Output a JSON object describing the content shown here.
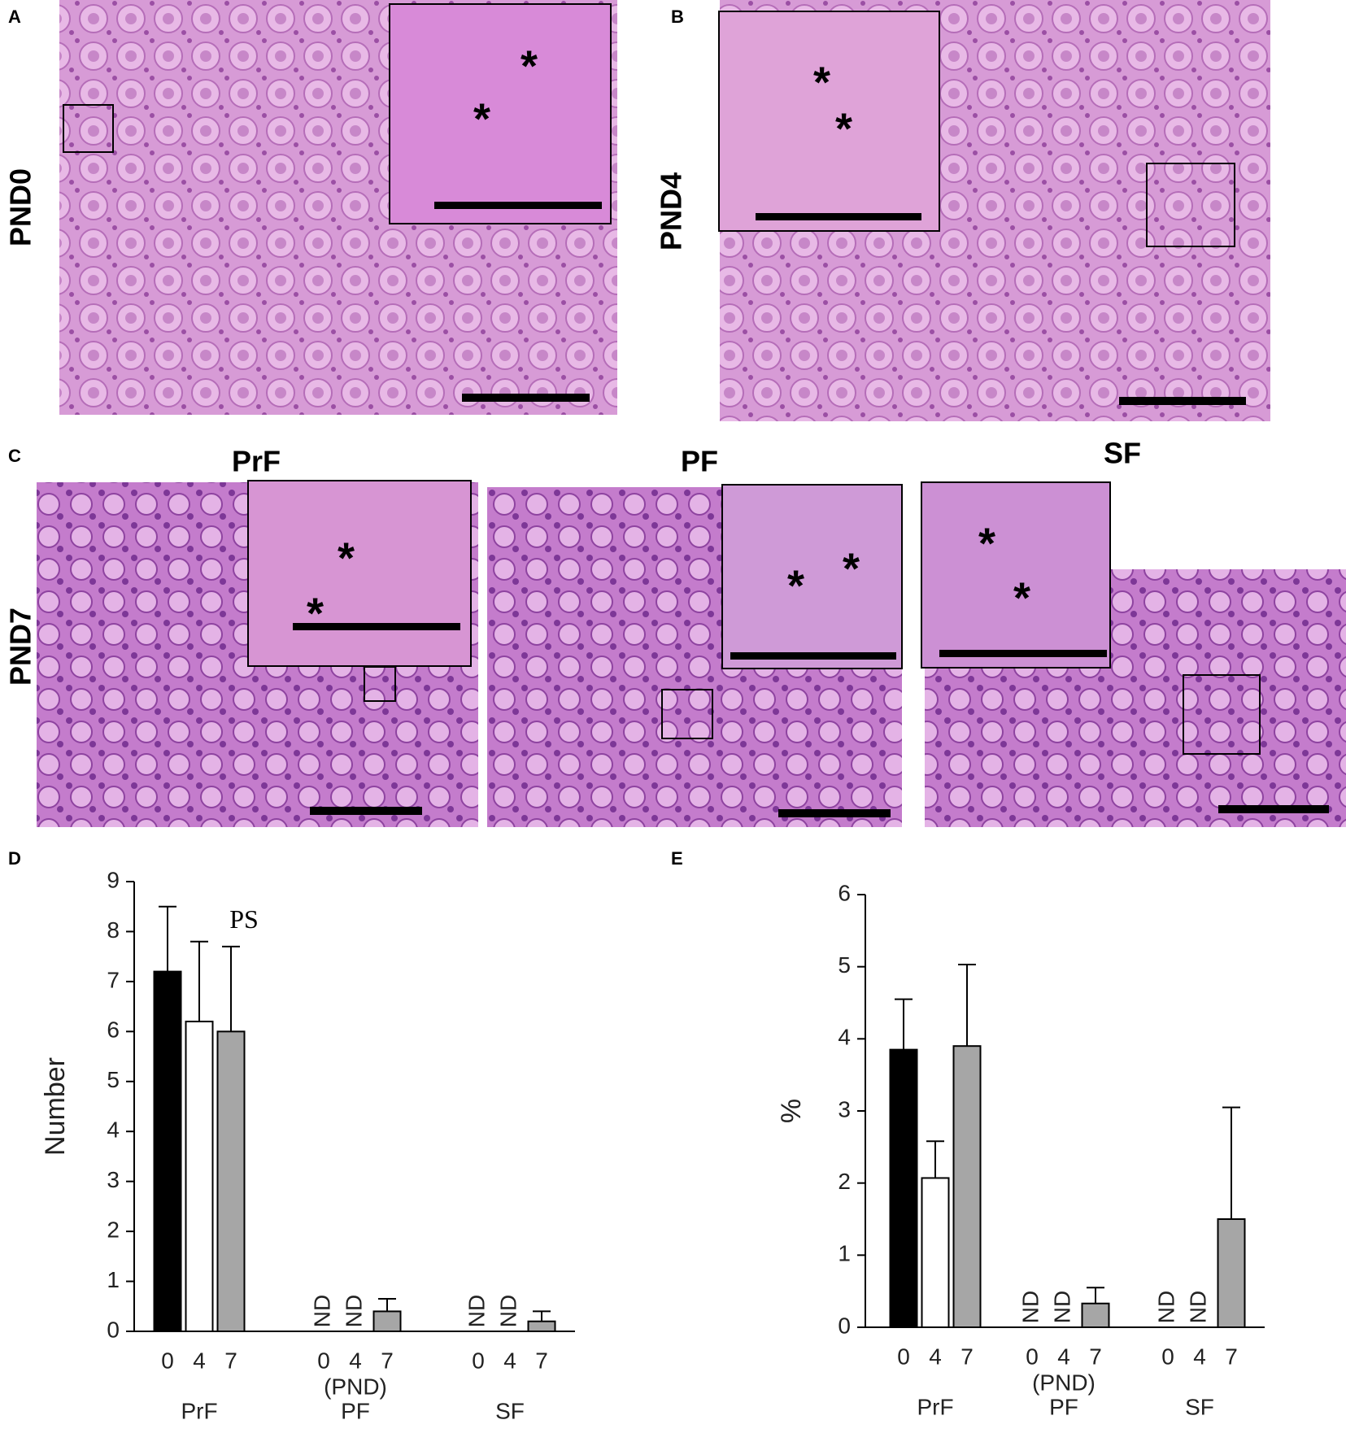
{
  "panels": {
    "a": {
      "letter": "A",
      "stage": "PND0",
      "inset_marks": [
        "*",
        "*"
      ]
    },
    "b": {
      "letter": "B",
      "stage": "PND4",
      "inset_marks": [
        "*",
        "*"
      ]
    },
    "c": {
      "letter": "C",
      "stage": "PND7",
      "titles": [
        "PrF",
        "PF",
        "SF"
      ],
      "inset_marks": [
        [
          "*",
          "*"
        ],
        [
          "*",
          "*"
        ],
        [
          "*",
          "*"
        ]
      ]
    },
    "d": {
      "letter": "D"
    },
    "e": {
      "letter": "E"
    }
  },
  "chart_data": [
    {
      "type": "bar",
      "ylabel": "Number",
      "xlabel": "(PND)",
      "annotation": "PS",
      "categories": [
        "PrF",
        "PF",
        "SF"
      ],
      "ylim": [
        0,
        9
      ],
      "yticks": [
        0,
        1,
        2,
        3,
        4,
        5,
        6,
        7,
        8,
        9
      ],
      "series": [
        {
          "name": "0",
          "color": "#000000",
          "values": [
            7.2,
            null,
            null
          ],
          "errors": [
            1.3,
            null,
            null
          ],
          "value_labels": [
            null,
            "ND",
            "ND"
          ]
        },
        {
          "name": "4",
          "color": "#ffffff",
          "values": [
            6.2,
            null,
            null
          ],
          "errors": [
            1.6,
            null,
            null
          ],
          "value_labels": [
            null,
            "ND",
            "ND"
          ]
        },
        {
          "name": "7",
          "color": "#a6a6a6",
          "values": [
            6.0,
            0.4,
            0.2
          ],
          "errors": [
            1.7,
            0.25,
            0.2
          ]
        }
      ]
    },
    {
      "type": "bar",
      "ylabel": "%",
      "xlabel": "(PND)",
      "categories": [
        "PrF",
        "PF",
        "SF"
      ],
      "ylim": [
        0,
        6
      ],
      "yticks": [
        0,
        1,
        2,
        3,
        4,
        5,
        6
      ],
      "series": [
        {
          "name": "0",
          "color": "#000000",
          "values": [
            3.85,
            null,
            null
          ],
          "errors": [
            0.7,
            null,
            null
          ],
          "value_labels": [
            null,
            "ND",
            "ND"
          ]
        },
        {
          "name": "4",
          "color": "#ffffff",
          "values": [
            2.07,
            null,
            null
          ],
          "errors": [
            0.51,
            null,
            null
          ],
          "value_labels": [
            null,
            "ND",
            "ND"
          ]
        },
        {
          "name": "7",
          "color": "#a6a6a6",
          "values": [
            3.9,
            0.33,
            1.5
          ],
          "errors": [
            1.13,
            0.22,
            1.55
          ]
        }
      ]
    }
  ]
}
